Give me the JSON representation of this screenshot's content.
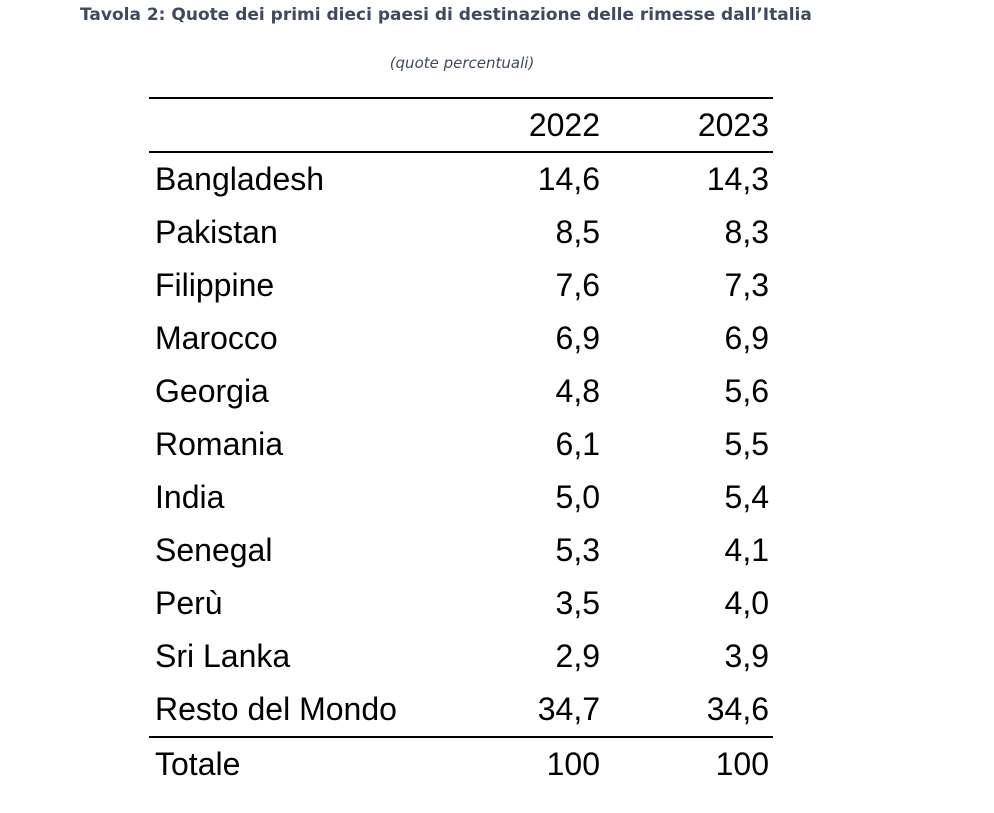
{
  "title": "Tavola 2: Quote dei primi dieci paesi di destinazione delle rimesse dall’Italia",
  "subtitle": "(quote percentuali)",
  "table": {
    "columns": [
      "2022",
      "2023"
    ],
    "rows": [
      {
        "label": "Bangladesh",
        "v2022": "14,6",
        "v2023": "14,3"
      },
      {
        "label": "Pakistan",
        "v2022": "8,5",
        "v2023": "8,3"
      },
      {
        "label": "Filippine",
        "v2022": "7,6",
        "v2023": "7,3"
      },
      {
        "label": "Marocco",
        "v2022": "6,9",
        "v2023": "6,9"
      },
      {
        "label": "Georgia",
        "v2022": "4,8",
        "v2023": "5,6"
      },
      {
        "label": "Romania",
        "v2022": "6,1",
        "v2023": "5,5"
      },
      {
        "label": "India",
        "v2022": "5,0",
        "v2023": "5,4"
      },
      {
        "label": "Senegal",
        "v2022": "5,3",
        "v2023": "4,1"
      },
      {
        "label": "Perù",
        "v2022": "3,5",
        "v2023": "4,0"
      },
      {
        "label": "Sri Lanka",
        "v2022": "2,9",
        "v2023": "3,9"
      },
      {
        "label": "Resto del Mondo",
        "v2022": "34,7",
        "v2023": "34,6"
      }
    ],
    "total": {
      "label": "Totale",
      "v2022": "100",
      "v2023": "100"
    }
  },
  "colors": {
    "title_text": "#3f4a5c",
    "table_text": "#000000",
    "rule": "#000000"
  }
}
